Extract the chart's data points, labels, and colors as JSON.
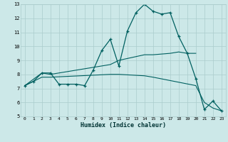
{
  "xlabel": "Humidex (Indice chaleur)",
  "bg_color": "#cce8e8",
  "grid_color": "#aacccc",
  "line_color": "#006060",
  "xlim": [
    -0.5,
    23.5
  ],
  "ylim": [
    5,
    13
  ],
  "xticks": [
    0,
    1,
    2,
    3,
    4,
    5,
    6,
    7,
    8,
    9,
    10,
    11,
    12,
    13,
    14,
    15,
    16,
    17,
    18,
    19,
    20,
    21,
    22,
    23
  ],
  "yticks": [
    5,
    6,
    7,
    8,
    9,
    10,
    11,
    12,
    13
  ],
  "line1_x": [
    0,
    1,
    2,
    3,
    4,
    5,
    6,
    7,
    8,
    9,
    10,
    11,
    12,
    13,
    14,
    15,
    16,
    17,
    18,
    19,
    20,
    21,
    22,
    23
  ],
  "line1_y": [
    7.2,
    7.5,
    8.1,
    8.1,
    7.3,
    7.3,
    7.3,
    7.2,
    8.3,
    9.7,
    10.5,
    8.6,
    11.1,
    12.4,
    13.0,
    12.5,
    12.3,
    12.4,
    10.7,
    9.5,
    7.7,
    5.5,
    6.1,
    5.4
  ],
  "line2_x": [
    0,
    2,
    3,
    10,
    11,
    14,
    15,
    17,
    18,
    19,
    20
  ],
  "line2_y": [
    7.2,
    8.1,
    8.0,
    8.7,
    9.0,
    9.4,
    9.4,
    9.5,
    9.6,
    9.5,
    9.5
  ],
  "line3_x": [
    0,
    2,
    3,
    10,
    11,
    14,
    15,
    20,
    21,
    22,
    23
  ],
  "line3_y": [
    7.2,
    7.8,
    7.8,
    8.0,
    8.0,
    7.9,
    7.8,
    7.2,
    6.0,
    5.6,
    5.4
  ]
}
